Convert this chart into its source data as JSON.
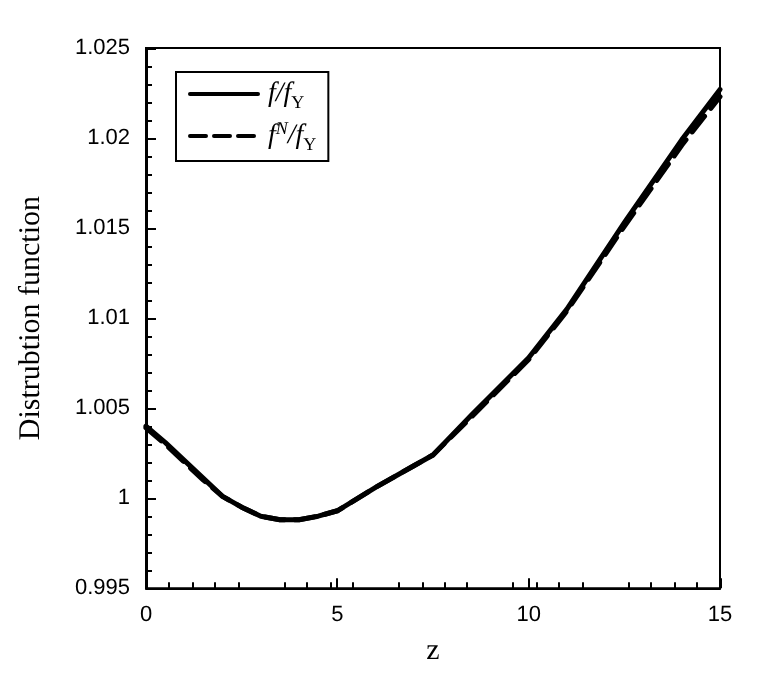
{
  "chart_data": {
    "type": "line",
    "xlabel": "z",
    "ylabel": "Distrubtion function",
    "xlim": [
      0,
      15
    ],
    "xticks": [
      0,
      5,
      10,
      15
    ],
    "ylim": [
      0.995,
      1.025
    ],
    "yticks": [
      0.995,
      1,
      1.005,
      1.01,
      1.015,
      1.02,
      1.025
    ],
    "grid": false,
    "legend": "top left",
    "marker": "none",
    "series": [
      {
        "name": "f/f$_{Υ}$",
        "color": "#000000",
        "line_style": "solid",
        "x": [
          0,
          0.5,
          1,
          1.5,
          2,
          2.5,
          3,
          3.5,
          4,
          4.5,
          5,
          6,
          7,
          7.5,
          8.5,
          10,
          11,
          12.5,
          14,
          15
        ],
        "values": [
          1.004,
          1.0031,
          1.0021,
          1.0011,
          1.0001,
          0.9995,
          0.999,
          0.9988,
          0.9988,
          0.999,
          0.9993,
          1.0006,
          1.0018,
          1.0024,
          1.0046,
          1.0078,
          1.0105,
          1.0153,
          1.0199,
          1.0227
        ]
      },
      {
        "name": "f$^{N}$/f$_{Υ}$",
        "color": "#000000",
        "line_style": "dashed",
        "x": [
          0,
          0.5,
          1,
          1.5,
          2,
          2.5,
          3,
          3.5,
          4,
          4.5,
          5,
          6,
          7,
          7.5,
          8.5,
          10,
          11,
          12.5,
          14,
          15
        ],
        "values": [
          1.0039,
          1.003,
          1.002,
          1.001,
          1.0001,
          0.9995,
          0.999,
          0.9988,
          0.9988,
          0.999,
          0.9993,
          1.0006,
          1.0018,
          1.0024,
          1.0045,
          1.0077,
          1.0104,
          1.0151,
          1.0196,
          1.0223
        ]
      }
    ]
  }
}
